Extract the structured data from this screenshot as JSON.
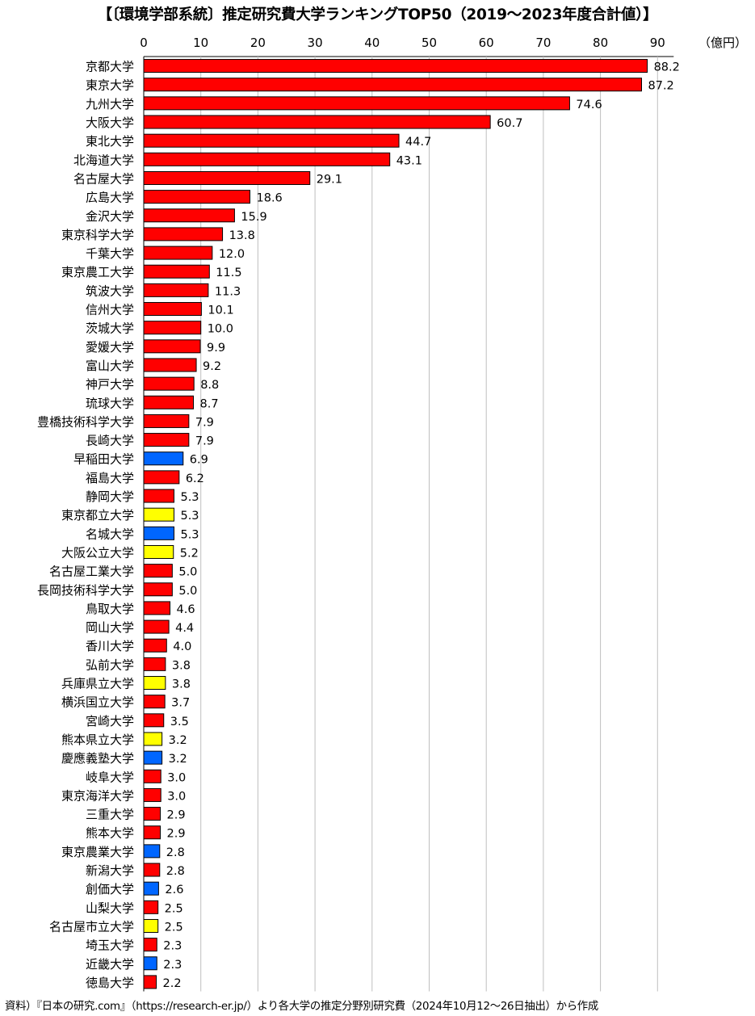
{
  "title": "【〔環境学部系統〕推定研究費大学ランキングTOP50（2019～2023年度合計値）】",
  "unit": "（億円）",
  "source": "資料）『日本の研究.com』（https://research-er.jp/）より各大学の推定分野別研究費（2024年10月12～26日抽出）から作成",
  "colors": {
    "national": "#ff0000",
    "public": "#ffff00",
    "private": "#0066ff",
    "grid": "#bfbfbf"
  },
  "chart_data": {
    "type": "bar",
    "orientation": "horizontal",
    "xlim": [
      0,
      90
    ],
    "xticks": [
      0,
      10,
      20,
      30,
      40,
      50,
      60,
      70,
      80,
      90
    ],
    "grid": true,
    "categories": [
      "京都大学",
      "東京大学",
      "九州大学",
      "大阪大学",
      "東北大学",
      "北海道大学",
      "名古屋大学",
      "広島大学",
      "金沢大学",
      "東京科学大学",
      "千葉大学",
      "東京農工大学",
      "筑波大学",
      "信州大学",
      "茨城大学",
      "愛媛大学",
      "富山大学",
      "神戸大学",
      "琉球大学",
      "豊橋技術科学大学",
      "長崎大学",
      "早稲田大学",
      "福島大学",
      "静岡大学",
      "東京都立大学",
      "名城大学",
      "大阪公立大学",
      "名古屋工業大学",
      "長岡技術科学大学",
      "鳥取大学",
      "岡山大学",
      "香川大学",
      "弘前大学",
      "兵庫県立大学",
      "横浜国立大学",
      "宮崎大学",
      "熊本県立大学",
      "慶應義塾大学",
      "岐阜大学",
      "東京海洋大学",
      "三重大学",
      "熊本大学",
      "東京農業大学",
      "新潟大学",
      "創価大学",
      "山梨大学",
      "名古屋市立大学",
      "埼玉大学",
      "近畿大学",
      "徳島大学"
    ],
    "values": [
      88.2,
      87.2,
      74.6,
      60.7,
      44.7,
      43.1,
      29.1,
      18.6,
      15.9,
      13.8,
      12.0,
      11.5,
      11.3,
      10.1,
      10.0,
      9.9,
      9.2,
      8.8,
      8.7,
      7.9,
      7.9,
      6.9,
      6.2,
      5.3,
      5.3,
      5.3,
      5.2,
      5.0,
      5.0,
      4.6,
      4.4,
      4.0,
      3.8,
      3.8,
      3.7,
      3.5,
      3.2,
      3.2,
      3.0,
      3.0,
      2.9,
      2.9,
      2.8,
      2.8,
      2.6,
      2.5,
      2.5,
      2.3,
      2.3,
      2.2
    ],
    "labels": [
      "88.2",
      "87.2",
      "74.6",
      "60.7",
      "44.7",
      "43.1",
      "29.1",
      "18.6",
      "15.9",
      "13.8",
      "12.0",
      "11.5",
      "11.3",
      "10.1",
      "10.0",
      "9.9",
      "9.2",
      "8.8",
      "8.7",
      "7.9",
      "7.9",
      "6.9",
      "6.2",
      "5.3",
      "5.3",
      "5.3",
      "5.2",
      "5.0",
      "5.0",
      "4.6",
      "4.4",
      "4.0",
      "3.8",
      "3.8",
      "3.7",
      "3.5",
      "3.2",
      "3.2",
      "3.0",
      "3.0",
      "2.9",
      "2.9",
      "2.8",
      "2.8",
      "2.6",
      "2.5",
      "2.5",
      "2.3",
      "2.3",
      "2.2"
    ],
    "bar_types": [
      "national",
      "national",
      "national",
      "national",
      "national",
      "national",
      "national",
      "national",
      "national",
      "national",
      "national",
      "national",
      "national",
      "national",
      "national",
      "national",
      "national",
      "national",
      "national",
      "national",
      "national",
      "private",
      "national",
      "national",
      "public",
      "private",
      "public",
      "national",
      "national",
      "national",
      "national",
      "national",
      "national",
      "public",
      "national",
      "national",
      "public",
      "private",
      "national",
      "national",
      "national",
      "national",
      "private",
      "national",
      "private",
      "national",
      "public",
      "national",
      "private",
      "national"
    ]
  }
}
